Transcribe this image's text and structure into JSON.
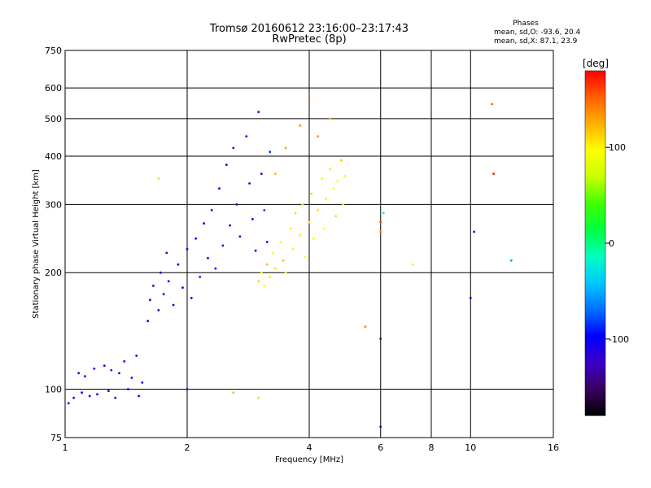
{
  "chart_data": {
    "type": "scatter",
    "title": "Tromsø 20160612 23:16:00–23:17:43",
    "subtitle": "RwPretec (8p)",
    "xlabel": "Frequency [MHz]",
    "ylabel": "Stationary phase Virtual Height [km]",
    "x_scale": "log",
    "y_scale": "log",
    "xlim": [
      1,
      16
    ],
    "ylim": [
      75,
      750
    ],
    "x_ticks": [
      1,
      2,
      4,
      6,
      8,
      10,
      16
    ],
    "y_ticks": [
      75,
      100,
      200,
      300,
      400,
      500,
      600,
      750
    ],
    "grid": true,
    "stats": {
      "heading": "Phases",
      "o_line": "mean, sd,O: -93.6, 20.4",
      "x_line": "mean, sd,X:  87.1, 23.9"
    },
    "colorbar": {
      "label": "[deg]",
      "range": [
        -180,
        180
      ],
      "ticks": [
        100,
        0,
        -100
      ],
      "colormap": [
        "#000000",
        "#3a0060",
        "#3a00c8",
        "#0000ff",
        "#0070ff",
        "#00c8ff",
        "#00ffc0",
        "#00ff40",
        "#40ff00",
        "#c8ff00",
        "#ffff00",
        "#ffb000",
        "#ff6000",
        "#ff0000"
      ]
    },
    "series": [
      {
        "points": [
          [
            1.02,
            92,
            -110
          ],
          [
            1.05,
            95,
            -105
          ],
          [
            1.08,
            110,
            -100
          ],
          [
            1.1,
            98,
            -95
          ],
          [
            1.12,
            108,
            -110
          ],
          [
            1.15,
            96,
            -100
          ],
          [
            1.18,
            113,
            -95
          ],
          [
            1.2,
            97,
            -105
          ],
          [
            1.25,
            115,
            -110
          ],
          [
            1.28,
            99,
            -100
          ],
          [
            1.3,
            112,
            -90
          ],
          [
            1.33,
            95,
            -100
          ],
          [
            1.36,
            110,
            -105
          ],
          [
            1.4,
            118,
            -95
          ],
          [
            1.43,
            100,
            -100
          ],
          [
            1.46,
            107,
            -110
          ],
          [
            1.5,
            122,
            -100
          ],
          [
            1.52,
            96,
            -95
          ],
          [
            1.55,
            104,
            -105
          ],
          [
            1.6,
            150,
            -110
          ],
          [
            1.62,
            170,
            -100
          ],
          [
            1.65,
            185,
            -95
          ],
          [
            1.7,
            160,
            -105
          ],
          [
            1.72,
            200,
            -100
          ],
          [
            1.75,
            176,
            -110
          ],
          [
            1.78,
            225,
            -95
          ],
          [
            1.8,
            190,
            -100
          ],
          [
            1.85,
            165,
            -105
          ],
          [
            1.9,
            210,
            -100
          ],
          [
            1.95,
            183,
            -110
          ],
          [
            2.0,
            230,
            -95
          ],
          [
            2.05,
            172,
            -100
          ],
          [
            2.1,
            245,
            -105
          ],
          [
            2.15,
            195,
            -90
          ],
          [
            2.2,
            268,
            -100
          ],
          [
            2.25,
            218,
            -105
          ],
          [
            2.3,
            290,
            -95
          ],
          [
            2.35,
            205,
            -110
          ],
          [
            2.4,
            330,
            -100
          ],
          [
            2.45,
            235,
            -95
          ],
          [
            2.5,
            380,
            -105
          ],
          [
            2.55,
            265,
            -100
          ],
          [
            2.6,
            420,
            -90
          ],
          [
            2.65,
            300,
            -105
          ],
          [
            2.7,
            248,
            -100
          ],
          [
            2.8,
            450,
            -95
          ],
          [
            2.85,
            340,
            -110
          ],
          [
            2.9,
            275,
            -100
          ],
          [
            2.95,
            228,
            -95
          ],
          [
            3.0,
            520,
            -105
          ],
          [
            3.05,
            360,
            -90
          ],
          [
            3.1,
            290,
            -80
          ],
          [
            3.15,
            240,
            -100
          ],
          [
            3.2,
            410,
            -85
          ]
        ]
      },
      {
        "points": [
          [
            3.0,
            190,
            110
          ],
          [
            3.05,
            200,
            100
          ],
          [
            3.1,
            185,
            95
          ],
          [
            3.15,
            210,
            120
          ],
          [
            3.2,
            195,
            105
          ],
          [
            3.25,
            225,
            90
          ],
          [
            3.3,
            205,
            110
          ],
          [
            3.4,
            240,
            100
          ],
          [
            3.45,
            215,
            115
          ],
          [
            3.5,
            200,
            95
          ],
          [
            3.6,
            260,
            105
          ],
          [
            3.65,
            230,
            90
          ],
          [
            3.7,
            285,
            110
          ],
          [
            3.8,
            250,
            100
          ],
          [
            3.85,
            300,
            80
          ],
          [
            3.9,
            220,
            95
          ],
          [
            4.0,
            270,
            105
          ],
          [
            4.05,
            320,
            60
          ],
          [
            4.1,
            245,
            100
          ],
          [
            4.2,
            290,
            110
          ],
          [
            4.3,
            350,
            90
          ],
          [
            4.35,
            260,
            95
          ],
          [
            4.4,
            310,
            100
          ],
          [
            4.5,
            370,
            105
          ],
          [
            4.6,
            330,
            95
          ],
          [
            4.65,
            280,
            110
          ],
          [
            4.7,
            345,
            100
          ],
          [
            4.8,
            390,
            115
          ],
          [
            4.85,
            300,
            90
          ],
          [
            4.9,
            355,
            100
          ],
          [
            3.5,
            420,
            130
          ],
          [
            3.8,
            480,
            140
          ],
          [
            4.0,
            560,
            150
          ],
          [
            3.3,
            360,
            120
          ],
          [
            4.2,
            450,
            135
          ],
          [
            4.5,
            500,
            125
          ]
        ]
      },
      {
        "points": [
          [
            2.6,
            98,
            120
          ],
          [
            3.0,
            95,
            110
          ],
          [
            6.0,
            270,
            160
          ],
          [
            6.1,
            285,
            0
          ],
          [
            6.0,
            255,
            140
          ],
          [
            6.0,
            135,
            -150
          ],
          [
            6.0,
            80,
            -110
          ],
          [
            10.2,
            255,
            -110
          ],
          [
            10.0,
            172,
            -100
          ],
          [
            12.6,
            215,
            -50
          ],
          [
            11.3,
            545,
            150
          ],
          [
            11.4,
            360,
            170
          ],
          [
            7.2,
            210,
            100
          ],
          [
            5.5,
            145,
            140
          ],
          [
            1.7,
            350,
            110
          ],
          [
            2.0,
            100,
            -100
          ]
        ]
      }
    ]
  }
}
